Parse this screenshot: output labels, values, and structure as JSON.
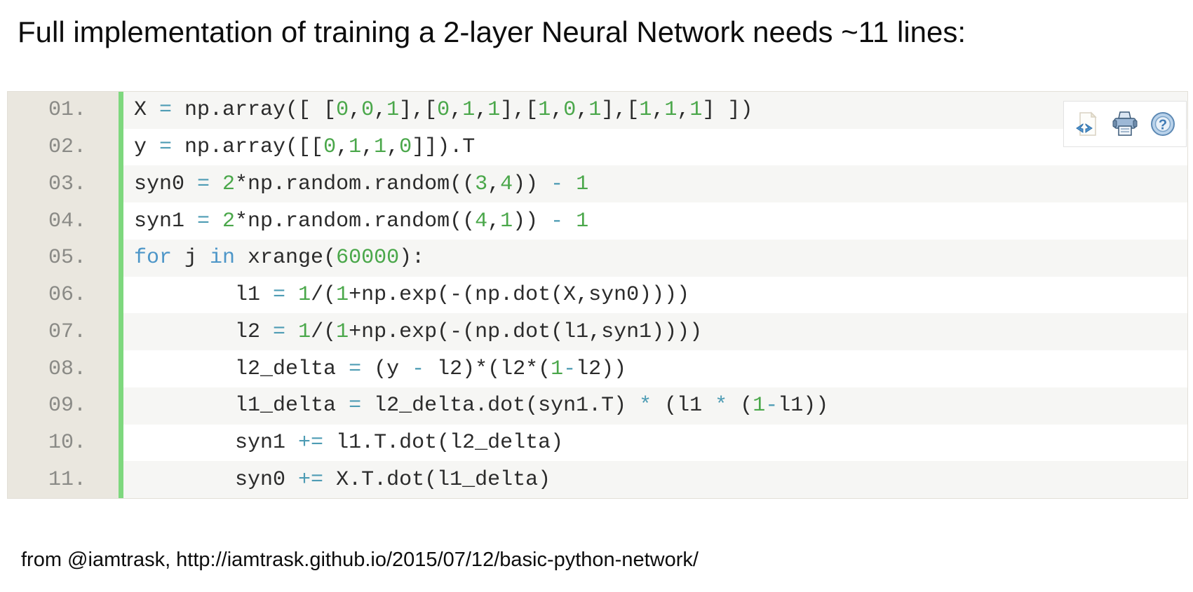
{
  "title": "Full implementation of training a 2-layer Neural Network needs ~11 lines:",
  "footer": "from @iamtrask, http://iamtrask.github.io/2015/07/12/basic-python-network/",
  "colors": {
    "gutter_bg": "#eae7df",
    "gutter_text": "#8a8a86",
    "divider_green": "#7ed87e",
    "row_alt": "#f6f6f4",
    "code_text": "#2b2b2b",
    "number_green": "#4aa74a",
    "keyword_blue": "#4d96c8",
    "operator_teal": "#4e9cb4"
  },
  "toolbar": {
    "icons": [
      "view-source-icon",
      "print-icon",
      "help-icon"
    ]
  },
  "code": {
    "language": "python",
    "lines": [
      {
        "num": "01.",
        "segments": [
          {
            "t": "X ",
            "c": "plain"
          },
          {
            "t": "= ",
            "c": "op"
          },
          {
            "t": "np.array([ [",
            "c": "plain"
          },
          {
            "t": "0",
            "c": "num"
          },
          {
            "t": ",",
            "c": "plain"
          },
          {
            "t": "0",
            "c": "num"
          },
          {
            "t": ",",
            "c": "plain"
          },
          {
            "t": "1",
            "c": "num"
          },
          {
            "t": "],[",
            "c": "plain"
          },
          {
            "t": "0",
            "c": "num"
          },
          {
            "t": ",",
            "c": "plain"
          },
          {
            "t": "1",
            "c": "num"
          },
          {
            "t": ",",
            "c": "plain"
          },
          {
            "t": "1",
            "c": "num"
          },
          {
            "t": "],[",
            "c": "plain"
          },
          {
            "t": "1",
            "c": "num"
          },
          {
            "t": ",",
            "c": "plain"
          },
          {
            "t": "0",
            "c": "num"
          },
          {
            "t": ",",
            "c": "plain"
          },
          {
            "t": "1",
            "c": "num"
          },
          {
            "t": "],[",
            "c": "plain"
          },
          {
            "t": "1",
            "c": "num"
          },
          {
            "t": ",",
            "c": "plain"
          },
          {
            "t": "1",
            "c": "num"
          },
          {
            "t": ",",
            "c": "plain"
          },
          {
            "t": "1",
            "c": "num"
          },
          {
            "t": "] ])",
            "c": "plain"
          }
        ]
      },
      {
        "num": "02.",
        "segments": [
          {
            "t": "y ",
            "c": "plain"
          },
          {
            "t": "= ",
            "c": "op"
          },
          {
            "t": "np.array([[",
            "c": "plain"
          },
          {
            "t": "0",
            "c": "num"
          },
          {
            "t": ",",
            "c": "plain"
          },
          {
            "t": "1",
            "c": "num"
          },
          {
            "t": ",",
            "c": "plain"
          },
          {
            "t": "1",
            "c": "num"
          },
          {
            "t": ",",
            "c": "plain"
          },
          {
            "t": "0",
            "c": "num"
          },
          {
            "t": "]]).T",
            "c": "plain"
          }
        ]
      },
      {
        "num": "03.",
        "segments": [
          {
            "t": "syn0 ",
            "c": "plain"
          },
          {
            "t": "= ",
            "c": "op"
          },
          {
            "t": "2",
            "c": "num"
          },
          {
            "t": "*np.random.random((",
            "c": "plain"
          },
          {
            "t": "3",
            "c": "num"
          },
          {
            "t": ",",
            "c": "plain"
          },
          {
            "t": "4",
            "c": "num"
          },
          {
            "t": ")) ",
            "c": "plain"
          },
          {
            "t": "- ",
            "c": "op"
          },
          {
            "t": "1",
            "c": "num"
          }
        ]
      },
      {
        "num": "04.",
        "segments": [
          {
            "t": "syn1 ",
            "c": "plain"
          },
          {
            "t": "= ",
            "c": "op"
          },
          {
            "t": "2",
            "c": "num"
          },
          {
            "t": "*np.random.random((",
            "c": "plain"
          },
          {
            "t": "4",
            "c": "num"
          },
          {
            "t": ",",
            "c": "plain"
          },
          {
            "t": "1",
            "c": "num"
          },
          {
            "t": ")) ",
            "c": "plain"
          },
          {
            "t": "- ",
            "c": "op"
          },
          {
            "t": "1",
            "c": "num"
          }
        ]
      },
      {
        "num": "05.",
        "segments": [
          {
            "t": "for ",
            "c": "kw"
          },
          {
            "t": "j ",
            "c": "plain"
          },
          {
            "t": "in ",
            "c": "kw"
          },
          {
            "t": "xrange(",
            "c": "plain"
          },
          {
            "t": "60000",
            "c": "num"
          },
          {
            "t": "):",
            "c": "plain"
          }
        ]
      },
      {
        "num": "06.",
        "segments": [
          {
            "t": "        l1 ",
            "c": "plain"
          },
          {
            "t": "= ",
            "c": "op"
          },
          {
            "t": "1",
            "c": "num"
          },
          {
            "t": "/(",
            "c": "plain"
          },
          {
            "t": "1",
            "c": "num"
          },
          {
            "t": "+np.exp(-(np.dot(X,syn0))))",
            "c": "plain"
          }
        ]
      },
      {
        "num": "07.",
        "segments": [
          {
            "t": "        l2 ",
            "c": "plain"
          },
          {
            "t": "= ",
            "c": "op"
          },
          {
            "t": "1",
            "c": "num"
          },
          {
            "t": "/(",
            "c": "plain"
          },
          {
            "t": "1",
            "c": "num"
          },
          {
            "t": "+np.exp(-(np.dot(l1,syn1))))",
            "c": "plain"
          }
        ]
      },
      {
        "num": "08.",
        "segments": [
          {
            "t": "        l2_delta ",
            "c": "plain"
          },
          {
            "t": "= ",
            "c": "op"
          },
          {
            "t": "(y ",
            "c": "plain"
          },
          {
            "t": "- ",
            "c": "op"
          },
          {
            "t": "l2)*(l2*(",
            "c": "plain"
          },
          {
            "t": "1",
            "c": "num"
          },
          {
            "t": "-",
            "c": "op"
          },
          {
            "t": "l2))",
            "c": "plain"
          }
        ]
      },
      {
        "num": "09.",
        "segments": [
          {
            "t": "        l1_delta ",
            "c": "plain"
          },
          {
            "t": "= ",
            "c": "op"
          },
          {
            "t": "l2_delta.dot(syn1.T) ",
            "c": "plain"
          },
          {
            "t": "* ",
            "c": "op"
          },
          {
            "t": "(l1 ",
            "c": "plain"
          },
          {
            "t": "* ",
            "c": "op"
          },
          {
            "t": "(",
            "c": "plain"
          },
          {
            "t": "1",
            "c": "num"
          },
          {
            "t": "-",
            "c": "op"
          },
          {
            "t": "l1))",
            "c": "plain"
          }
        ]
      },
      {
        "num": "10.",
        "segments": [
          {
            "t": "        syn1 ",
            "c": "plain"
          },
          {
            "t": "+= ",
            "c": "op"
          },
          {
            "t": "l1.T.dot(l2_delta)",
            "c": "plain"
          }
        ]
      },
      {
        "num": "11.",
        "segments": [
          {
            "t": "        syn0 ",
            "c": "plain"
          },
          {
            "t": "+= ",
            "c": "op"
          },
          {
            "t": "X.T.dot(l1_delta)",
            "c": "plain"
          }
        ]
      }
    ]
  }
}
